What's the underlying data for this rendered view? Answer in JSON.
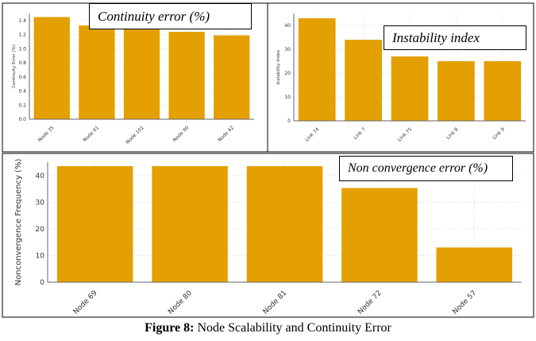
{
  "chart_data": [
    {
      "type": "bar",
      "title": "Continuity error (%)",
      "ylabel": "Continuity Error (%)",
      "categories": [
        "Node 35",
        "Node 61",
        "Node 101",
        "Node 90",
        "Node 42"
      ],
      "values": [
        1.45,
        1.33,
        1.3,
        1.24,
        1.19
      ],
      "ylim": [
        0,
        1.5
      ],
      "yticks": [
        "0.0",
        "0.2",
        "0.4",
        "0.6",
        "0.8",
        "1.0",
        "1.2",
        "1.4"
      ],
      "grid": true,
      "color": "#E3A000"
    },
    {
      "type": "bar",
      "title": "Instability index",
      "ylabel": "Instability Index",
      "categories": [
        "Link 74",
        "Link 7",
        "Link 75",
        "Link 8",
        "Link 9"
      ],
      "values": [
        43,
        34,
        27,
        25,
        25
      ],
      "ylim": [
        0,
        45
      ],
      "yticks": [
        "0",
        "10",
        "20",
        "30",
        "40"
      ],
      "grid": true,
      "color": "#E3A000"
    },
    {
      "type": "bar",
      "title": "Non convergence error (%)",
      "ylabel": "Nonconvergence Frequency (%)",
      "categories": [
        "Node 69",
        "Node 80",
        "Node 81",
        "Node 72",
        "Node 57"
      ],
      "values": [
        43.5,
        43.5,
        43.5,
        35.3,
        13
      ],
      "ylim": [
        0,
        45
      ],
      "yticks": [
        "0",
        "10",
        "20",
        "30",
        "40"
      ],
      "grid": true,
      "color": "#E3A000"
    }
  ],
  "caption": {
    "label": "Figure 8:",
    "text": " Node Scalability and Continuity Error"
  }
}
